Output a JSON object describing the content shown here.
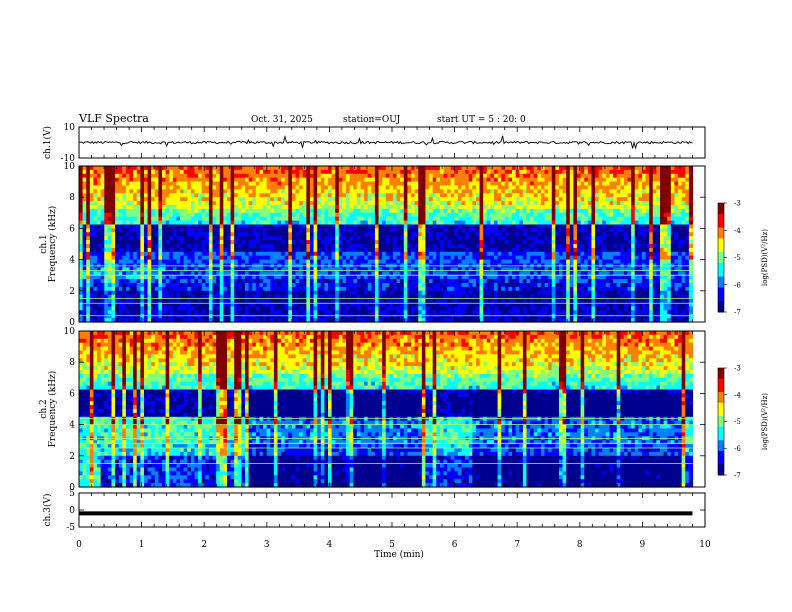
{
  "header": {
    "title": "VLF Spectra",
    "date": "Oct. 31, 2025",
    "station": "station=OUJ",
    "start": "start  UT =  5 : 20: 0"
  },
  "chart_data": {
    "type": "heatmap",
    "x_axis": {
      "label": "Time (min)",
      "range": [
        0,
        10
      ],
      "ticks": [
        "0",
        "1",
        "2",
        "3",
        "4",
        "5",
        "6",
        "7",
        "8",
        "9",
        "10"
      ]
    },
    "panels": [
      {
        "name": "ch.1(V) waveform",
        "type": "line",
        "ylabel": "ch.1(V)",
        "ylim": [
          -10,
          10
        ],
        "yticks": [
          "10",
          "-10"
        ],
        "baseline": 0,
        "data_end_min": 9.8
      },
      {
        "name": "ch.1 spectrogram",
        "type": "heatmap",
        "ylabel": "ch.1\nFrequency (kHz)",
        "ylim": [
          0,
          10
        ],
        "yticks": [
          "0",
          "2",
          "4",
          "6",
          "8",
          "10"
        ],
        "data_end_min": 9.8,
        "colorbar": {
          "label": "log(PSD)(V²/Hz)",
          "range": [
            -7,
            -3
          ],
          "ticks": [
            "-3",
            "-4",
            "-5",
            "-6",
            "-7"
          ]
        }
      },
      {
        "name": "ch.2 spectrogram",
        "type": "heatmap",
        "ylabel": "ch.2\nFrequency (kHz)",
        "ylim": [
          0,
          10
        ],
        "yticks": [
          "0",
          "2",
          "4",
          "6",
          "8",
          "10"
        ],
        "data_end_min": 9.8,
        "colorbar": {
          "label": "log(PSD)(V²/Hz)",
          "range": [
            -7,
            -3
          ],
          "ticks": [
            "-3",
            "-4",
            "-5",
            "-6",
            "-7"
          ]
        }
      },
      {
        "name": "ch.3(V) waveform",
        "type": "line",
        "ylabel": "ch.3(V)",
        "ylim": [
          -5,
          5
        ],
        "yticks": [
          "5",
          "0",
          "-5"
        ],
        "baseline": -1,
        "data_end_min": 9.8
      }
    ],
    "colormap": [
      "#00008f",
      "#0000ff",
      "#0080ff",
      "#00ffff",
      "#80ff80",
      "#ffff00",
      "#ff8000",
      "#ff0000",
      "#800000"
    ]
  }
}
